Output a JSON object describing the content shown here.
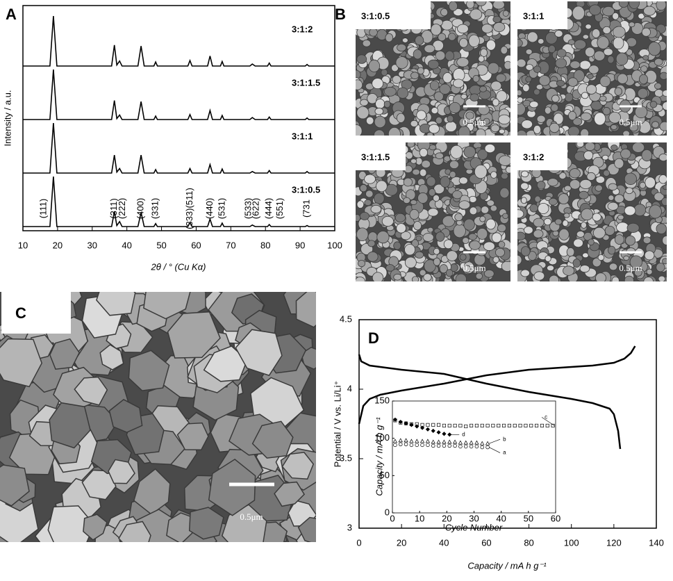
{
  "chart_data": [
    {
      "type": "line",
      "label": "A",
      "stacked": true,
      "xlabel": "2θ / ° (Cu Kα)",
      "ylabel": "Intensity / a.u.",
      "xlim": [
        10,
        100
      ],
      "xticks": [
        10,
        20,
        30,
        40,
        50,
        60,
        70,
        80,
        90,
        100
      ],
      "x": [
        10,
        17.8,
        18.8,
        19.8,
        35.6,
        36.4,
        37.1,
        37.9,
        38.6,
        43.2,
        44.1,
        45.0,
        47.8,
        48.3,
        48.8,
        57.6,
        58.2,
        58.8,
        63.3,
        64.0,
        64.7,
        67.0,
        67.5,
        68.0,
        75.5,
        76.2,
        77.0,
        80.6,
        81.1,
        81.6,
        91.5,
        92,
        92.5,
        100
      ],
      "series": [
        {
          "name": "3:1:2",
          "color": "#000000",
          "values": [
            0,
            0,
            100,
            0,
            0,
            42,
            2,
            10,
            0,
            0,
            40,
            0,
            0,
            8,
            0,
            0,
            11,
            0,
            0,
            20,
            0,
            0,
            9,
            0,
            0,
            4,
            0,
            0,
            6,
            0,
            0,
            3,
            0,
            0
          ]
        },
        {
          "name": "3:1:1.5",
          "color": "#000000",
          "values": [
            0,
            0,
            100,
            0,
            0,
            38,
            2,
            9,
            0,
            0,
            36,
            0,
            0,
            7,
            0,
            0,
            10,
            0,
            0,
            18,
            0,
            0,
            8,
            0,
            0,
            4,
            0,
            0,
            5,
            0,
            0,
            3,
            0,
            0
          ]
        },
        {
          "name": "3:1:1",
          "color": "#000000",
          "values": [
            0,
            0,
            100,
            0,
            0,
            36,
            2,
            9,
            0,
            0,
            36,
            0,
            0,
            7,
            0,
            0,
            9,
            0,
            0,
            17,
            0,
            0,
            8,
            0,
            0,
            3,
            0,
            0,
            5,
            0,
            0,
            3,
            0,
            0
          ]
        },
        {
          "name": "3:1:0.5",
          "color": "#000000",
          "values": [
            0,
            0,
            100,
            0,
            0,
            30,
            2,
            10,
            0,
            0,
            28,
            0,
            0,
            6,
            0,
            0,
            8,
            0,
            0,
            15,
            0,
            0,
            7,
            0,
            0,
            3,
            0,
            0,
            4,
            0,
            0,
            2,
            0,
            0
          ]
        }
      ],
      "annotations": [
        {
          "text": "(111)",
          "x": 16
        },
        {
          "text": "(311)",
          "x": 36.4
        },
        {
          "text": "(222)",
          "x": 38.8
        },
        {
          "text": "(400)",
          "x": 44.1
        },
        {
          "text": "(331)",
          "x": 48.3
        },
        {
          "text": "(333)(511)",
          "x": 58.2
        },
        {
          "text": "(440)",
          "x": 64.0
        },
        {
          "text": "(531)",
          "x": 67.5
        },
        {
          "text": "(533)",
          "x": 75.2
        },
        {
          "text": "(622)",
          "x": 77.4
        },
        {
          "text": "(444)",
          "x": 81.1
        },
        {
          "text": "(551)",
          "x": 84.3
        },
        {
          "text": "(731",
          "x": 92
        }
      ]
    },
    {
      "type": "line",
      "label": "D",
      "xlabel": "Capacity / mA h g⁻¹",
      "ylabel": "Potential / V vs. Li/Li⁺",
      "xlim": [
        0,
        140
      ],
      "xticks": [
        0,
        20,
        40,
        60,
        80,
        100,
        120,
        140
      ],
      "ylim": [
        3,
        4.5
      ],
      "yticks": [
        3,
        3.5,
        4,
        4.5
      ],
      "series": [
        {
          "color": "#000000",
          "x": [
            0,
            2,
            5,
            10,
            20,
            40,
            60,
            80,
            100,
            110,
            120,
            125,
            128,
            130
          ],
          "values": [
            3.75,
            3.88,
            3.93,
            3.96,
            3.99,
            4.04,
            4.1,
            4.14,
            4.16,
            4.17,
            4.19,
            4.22,
            4.26,
            4.31
          ]
        },
        {
          "color": "#000000",
          "x": [
            0,
            1,
            5,
            20,
            40,
            60,
            80,
            100,
            110,
            118,
            120,
            122,
            123
          ],
          "values": [
            4.25,
            4.2,
            4.17,
            4.14,
            4.11,
            4.04,
            3.98,
            3.93,
            3.9,
            3.86,
            3.82,
            3.7,
            3.57
          ]
        }
      ]
    },
    {
      "type": "line",
      "xlabel": "Cycle Number",
      "ylabel": "Capacity / mA h g⁻¹",
      "xlim": [
        0,
        60
      ],
      "xticks": [
        0,
        10,
        20,
        30,
        40,
        50,
        60
      ],
      "ylim": [
        0,
        150
      ],
      "yticks": [
        0,
        50,
        100,
        150
      ],
      "series": [
        {
          "name": "c",
          "marker": "square",
          "color": "#000000",
          "x": [
            1,
            3,
            5,
            7,
            9,
            11,
            13,
            15,
            17,
            19,
            21,
            23,
            25,
            27,
            29,
            31,
            33,
            35,
            37,
            39,
            41,
            43,
            45,
            47,
            49,
            51,
            53,
            55,
            57,
            59
          ],
          "values": [
            124,
            121,
            120,
            119,
            119,
            118,
            118,
            118,
            118,
            117,
            117,
            117,
            117,
            116,
            117,
            117,
            117,
            117,
            117,
            117,
            117,
            117,
            117,
            117,
            117,
            117,
            117,
            117,
            117,
            117
          ]
        },
        {
          "name": "d",
          "marker": "diamond",
          "color": "#000000",
          "x": [
            1,
            3,
            5,
            7,
            9,
            11,
            13,
            15,
            17,
            19,
            21
          ],
          "values": [
            125,
            122,
            120,
            118,
            116,
            114,
            112,
            110,
            108,
            106,
            105
          ]
        },
        {
          "name": "b",
          "marker": "triangle",
          "color": "#000000",
          "x": [
            1,
            3,
            5,
            7,
            9,
            11,
            13,
            15,
            17,
            19,
            21,
            23,
            25,
            27,
            29,
            31,
            33,
            35
          ],
          "values": [
            96,
            97,
            97,
            96,
            96,
            96,
            96,
            95,
            95,
            95,
            95,
            95,
            94,
            94,
            94,
            94,
            93,
            93
          ]
        },
        {
          "name": "a",
          "marker": "circle",
          "color": "#000000",
          "x": [
            1,
            3,
            5,
            7,
            9,
            11,
            13,
            15,
            17,
            19,
            21,
            23,
            25,
            27,
            29,
            31,
            33,
            35
          ],
          "values": [
            91,
            92,
            92,
            91,
            91,
            91,
            91,
            90,
            90,
            90,
            90,
            90,
            89,
            89,
            89,
            89,
            88,
            88
          ]
        }
      ]
    }
  ],
  "micrographs": {
    "B": {
      "label": "B",
      "tiles": [
        {
          "sample": "3:1:0.5",
          "scale_bar": "0.5μm"
        },
        {
          "sample": "3:1:1",
          "scale_bar": "0.5μm"
        },
        {
          "sample": "3:1:1.5",
          "scale_bar": "0.5μm"
        },
        {
          "sample": "3:1:2",
          "scale_bar": "0.5μm"
        }
      ]
    },
    "C": {
      "label": "C",
      "scale_bar": "0.5μm"
    }
  }
}
